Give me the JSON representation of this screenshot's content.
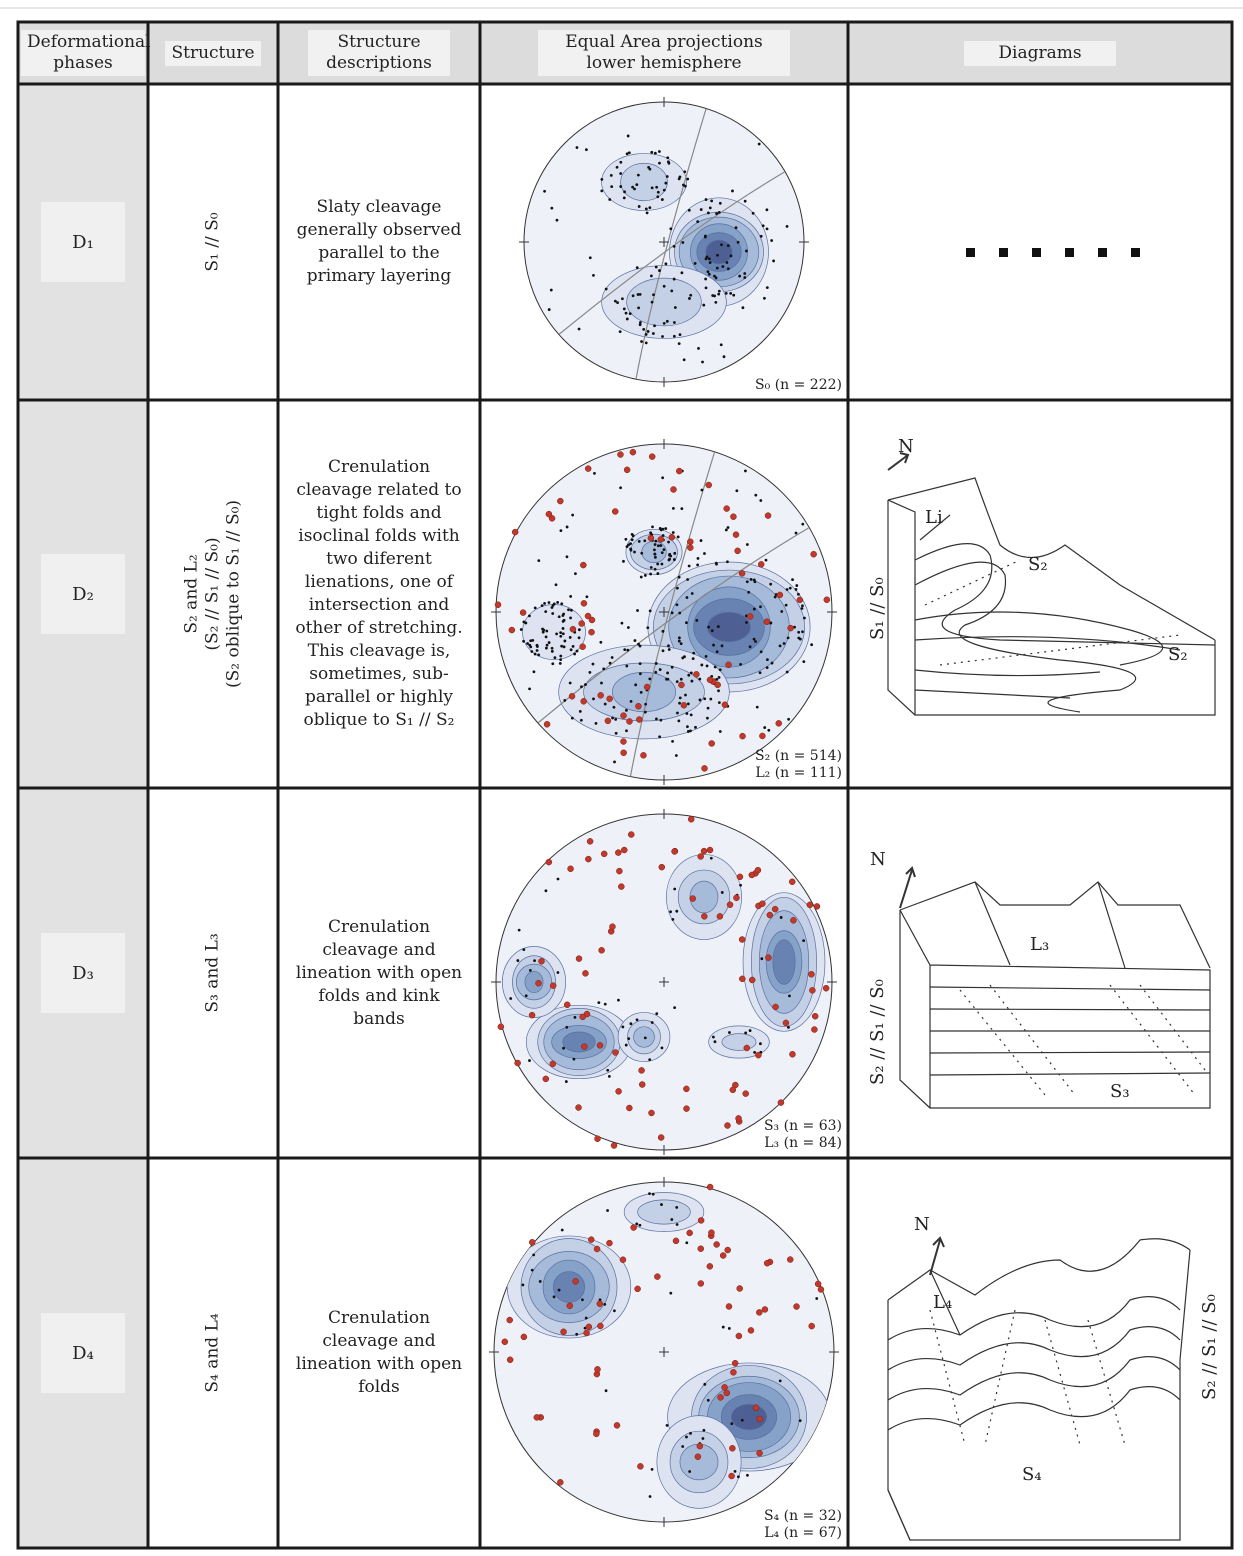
{
  "table": {
    "header": [
      "Deformational phases",
      "Structure",
      "Structure descriptions",
      "Equal Area projections lower hemisphere",
      "Diagrams"
    ],
    "rows": [
      {
        "phase": "D₁",
        "structure": [
          "S₁ // S₀"
        ],
        "description": "Slaty cleavage generally observed parallel to the primary layering",
        "projection_labels": [
          "S₀ (n = 222)"
        ],
        "diagram_labels": []
      },
      {
        "phase": "D₂",
        "structure": [
          "S₂ and L₂",
          "(S₂ // S₁ // S₀)",
          "(S₂ oblique to S₁ // S₀)"
        ],
        "description": "Crenulation cleavage related to tight folds and isoclinal folds with two diferent lienations, one of intersection and other of stretching. This cleavage is, sometimes, sub-parallel or highly oblique to S₁ // S₂",
        "projection_labels": [
          "S₂ (n = 514)",
          "L₂ (n = 111)"
        ],
        "diagram_labels": [
          "N",
          "Li",
          "S₂",
          "S₂",
          "S₁ // S₀"
        ]
      },
      {
        "phase": "D₃",
        "structure": [
          "S₃ and L₃"
        ],
        "description": "Crenulation cleavage and lineation with open folds and kink bands",
        "projection_labels": [
          "S₃ (n = 63)",
          "L₃ (n = 84)"
        ],
        "diagram_labels": [
          "N",
          "L₃",
          "S₃",
          "S₂ // S₁ // S₀"
        ]
      },
      {
        "phase": "D₄",
        "structure": [
          "S₄ and L₄"
        ],
        "description": "Crenulation cleavage and lineation with open folds",
        "projection_labels": [
          "S₄ (n = 32)",
          "L₄ (n = 67)"
        ],
        "diagram_labels": [
          "N",
          "L₄",
          "S₄",
          "S₂ // S₁ // S₀"
        ]
      }
    ]
  }
}
